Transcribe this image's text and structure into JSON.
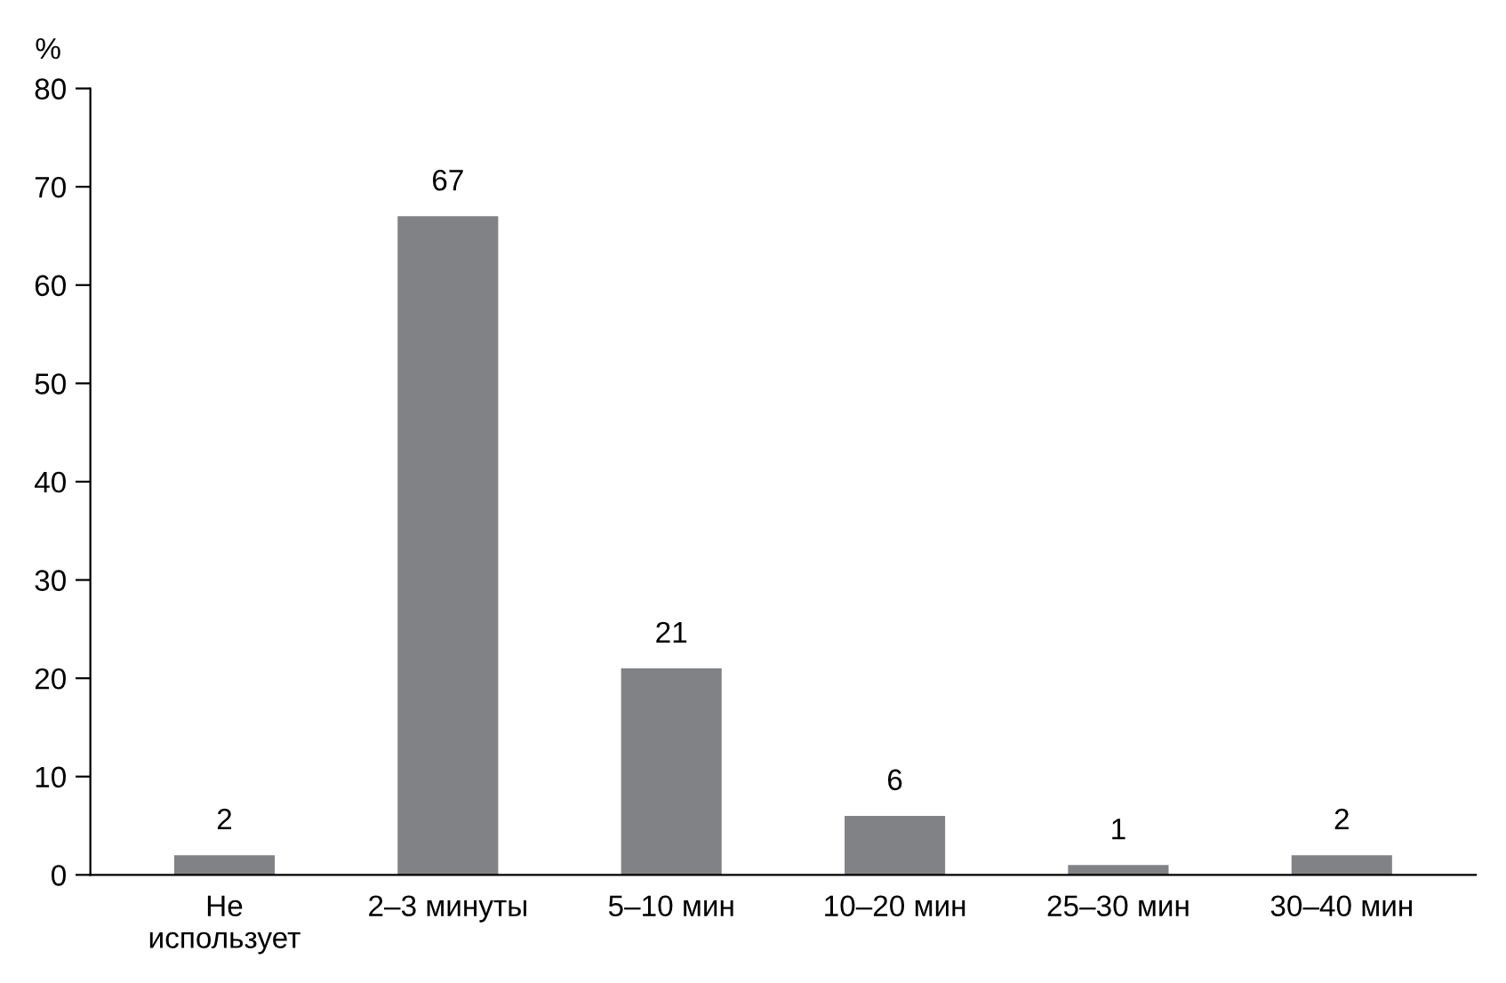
{
  "chart_data": {
    "type": "bar",
    "ylabel": "%",
    "categories": [
      "Не\nиспользует",
      "2–3 минуты",
      "5–10 мин",
      "10–20 мин",
      "25–30 мин",
      "30–40 мин"
    ],
    "values": [
      2,
      67,
      21,
      6,
      1,
      2
    ],
    "color": "#808285",
    "ylim": [
      0,
      80
    ],
    "yticks": [
      0,
      10,
      20,
      30,
      40,
      50,
      60,
      70,
      80
    ],
    "grid": false,
    "data_labels": true
  }
}
